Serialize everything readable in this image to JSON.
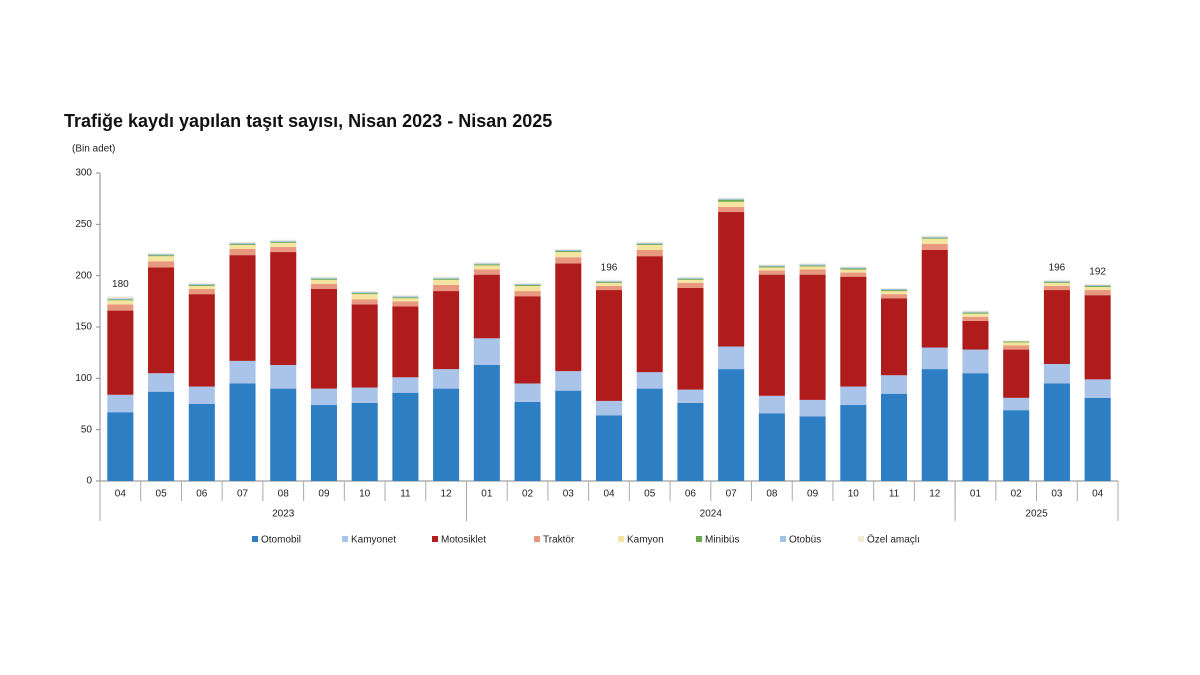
{
  "chart_data": {
    "type": "stacked_bar",
    "title": "Trafiğe kaydı yapılan taşıt sayısı, Nisan 2023 - Nisan 2025",
    "y_axis_label": "(Bin adet)",
    "categories": [
      "04",
      "05",
      "06",
      "07",
      "08",
      "09",
      "10",
      "11",
      "12",
      "01",
      "02",
      "03",
      "04",
      "05",
      "06",
      "07",
      "08",
      "09",
      "10",
      "11",
      "12",
      "01",
      "02",
      "03",
      "04"
    ],
    "x_groups": [
      "2023",
      "2024",
      "2025"
    ],
    "ylim": [
      0,
      300
    ],
    "yticks": [
      0,
      50,
      100,
      150,
      200,
      250,
      300
    ],
    "grid": false,
    "series": [
      {
        "name": "Otomobil",
        "color": "#2e7ec4",
        "values": [
          67,
          87,
          75,
          95,
          90,
          74,
          76,
          86,
          90,
          113,
          77,
          88,
          64,
          90,
          76,
          109,
          66,
          63,
          74,
          85,
          109,
          105,
          69,
          95,
          81
        ]
      },
      {
        "name": "Kamyonet",
        "color": "#a9c4e8",
        "values": [
          17,
          18,
          17,
          22,
          23,
          16,
          15,
          15,
          19,
          26,
          18,
          19,
          14,
          16,
          13,
          22,
          17,
          16,
          18,
          18,
          21,
          23,
          12,
          19,
          18
        ]
      },
      {
        "name": "Motosiklet",
        "color": "#b01c1c",
        "values": [
          82,
          103,
          90,
          103,
          110,
          97,
          81,
          69,
          76,
          62,
          85,
          105,
          108,
          113,
          99,
          131,
          118,
          122,
          107,
          75,
          95,
          28,
          47,
          72,
          82
        ]
      },
      {
        "name": "Traktör",
        "color": "#e8987e",
        "values": [
          6,
          6,
          5,
          6,
          5,
          5,
          5,
          5,
          6,
          5,
          5,
          6,
          4,
          6,
          5,
          5,
          4,
          5,
          4,
          4,
          6,
          4,
          4,
          4,
          5
        ]
      },
      {
        "name": "Kamyon",
        "color": "#f5e3a0",
        "values": [
          4,
          5,
          3,
          4,
          4,
          4,
          5,
          3,
          5,
          4,
          5,
          5,
          3,
          5,
          3,
          5,
          3,
          3,
          3,
          3,
          5,
          3,
          3,
          3,
          3
        ]
      },
      {
        "name": "Minibüs",
        "color": "#6aa84f",
        "values": [
          1,
          1,
          1,
          1,
          1,
          1,
          1,
          1,
          1,
          1,
          1,
          1,
          1,
          1,
          1,
          2,
          1,
          1,
          1,
          1,
          1,
          1,
          1,
          1,
          1
        ]
      },
      {
        "name": "Otobüs",
        "color": "#9dc3e6",
        "values": [
          1,
          1,
          1,
          1,
          1,
          1,
          1,
          1,
          1,
          1,
          1,
          1,
          1,
          1,
          1,
          1,
          1,
          1,
          1,
          1,
          1,
          1,
          0,
          1,
          1
        ]
      },
      {
        "name": "Özel amaçlı",
        "color": "#f3ead8",
        "values": [
          2,
          1,
          1,
          1,
          1,
          1,
          1,
          1,
          1,
          1,
          1,
          1,
          1,
          1,
          1,
          1,
          1,
          1,
          1,
          1,
          1,
          1,
          1,
          1,
          1
        ]
      }
    ],
    "totals": [
      180,
      null,
      null,
      null,
      null,
      null,
      null,
      null,
      null,
      null,
      null,
      null,
      196,
      null,
      null,
      null,
      null,
      null,
      null,
      null,
      null,
      null,
      null,
      196,
      192
    ]
  }
}
